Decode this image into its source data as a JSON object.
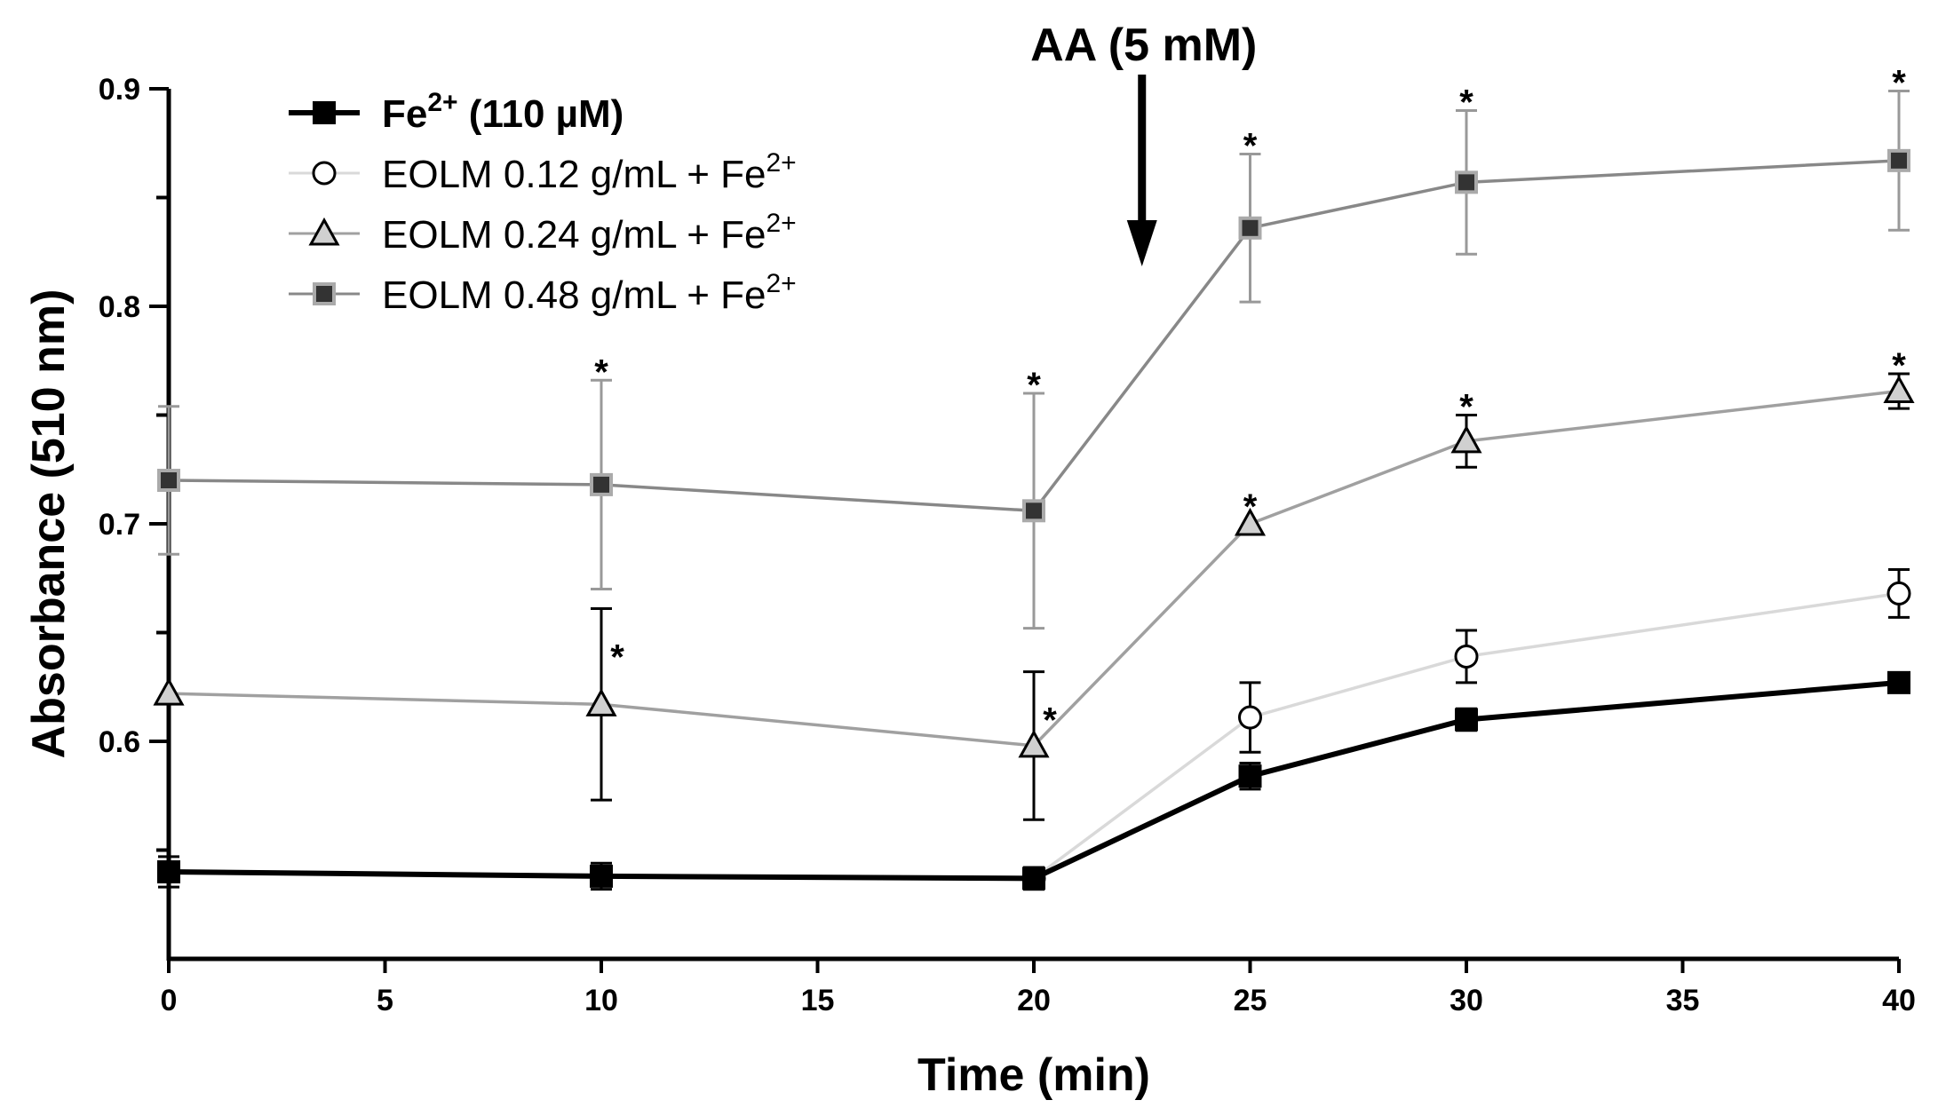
{
  "chart_data": {
    "type": "line",
    "title": "",
    "xlabel": "Time (min)",
    "ylabel": "Absorbance (510 nm)",
    "xlim": [
      0,
      40
    ],
    "ylim": [
      0.5,
      0.9
    ],
    "xticks": [
      0,
      5,
      10,
      15,
      20,
      25,
      30,
      35,
      40
    ],
    "yticks": [
      0.6,
      0.7,
      0.8,
      0.9
    ],
    "ytick_labels": [
      "0.6",
      "0.7",
      "0.8",
      "0.9"
    ],
    "grid": false,
    "legend_position": "top-left",
    "annotation": {
      "text": "AA (5 mM)",
      "x": 22.5
    },
    "series": [
      {
        "name": "Fe",
        "superscript": "2+",
        "suffix": " (110 µM)",
        "bold": true,
        "marker": "square",
        "line_color": "#000000",
        "marker_fill": "#000000",
        "marker_stroke": "#000000",
        "x": [
          0,
          10,
          20,
          25,
          30,
          40
        ],
        "y": [
          0.54,
          0.538,
          0.537,
          0.584,
          0.61,
          0.627
        ],
        "err": [
          0.007,
          0.006,
          0.005,
          0.006,
          0.005,
          0.004
        ],
        "stars": [
          false,
          false,
          false,
          false,
          false,
          false
        ]
      },
      {
        "name": "EOLM 0.12 g/mL + Fe",
        "superscript": "2+",
        "suffix": "",
        "bold": false,
        "marker": "circle",
        "line_color": "#d9d9d9",
        "marker_fill": "#ffffff",
        "marker_stroke": "#000000",
        "x": [
          20,
          25,
          30,
          40
        ],
        "y": [
          0.537,
          0.611,
          0.639,
          0.668
        ],
        "err": [
          0.005,
          0.016,
          0.012,
          0.011
        ],
        "stars": [
          false,
          false,
          false,
          false
        ]
      },
      {
        "name": "EOLM 0.24 g/mL + Fe",
        "superscript": "2+",
        "suffix": "",
        "bold": false,
        "marker": "triangle",
        "line_color": "#a0a0a0",
        "marker_fill": "#d0d0d0",
        "marker_stroke": "#000000",
        "x": [
          0,
          10,
          20,
          25,
          30,
          40
        ],
        "y": [
          0.622,
          0.617,
          0.598,
          0.7,
          0.738,
          0.761
        ],
        "err": [
          0.0,
          0.044,
          0.034,
          0.0,
          0.012,
          0.008
        ],
        "stars": [
          false,
          true,
          true,
          true,
          true,
          true
        ]
      },
      {
        "name": "EOLM 0.48 g/mL + Fe",
        "superscript": "2+",
        "suffix": "",
        "bold": false,
        "marker": "square",
        "line_color": "#888888",
        "marker_fill": "#333333",
        "marker_stroke": "#aaaaaa",
        "x": [
          0,
          10,
          20,
          25,
          30,
          40
        ],
        "y": [
          0.72,
          0.718,
          0.706,
          0.836,
          0.857,
          0.867
        ],
        "err": [
          0.034,
          0.048,
          0.054,
          0.034,
          0.033,
          0.032
        ],
        "stars": [
          false,
          true,
          true,
          true,
          true,
          true
        ]
      }
    ],
    "star_symbol": "*"
  }
}
